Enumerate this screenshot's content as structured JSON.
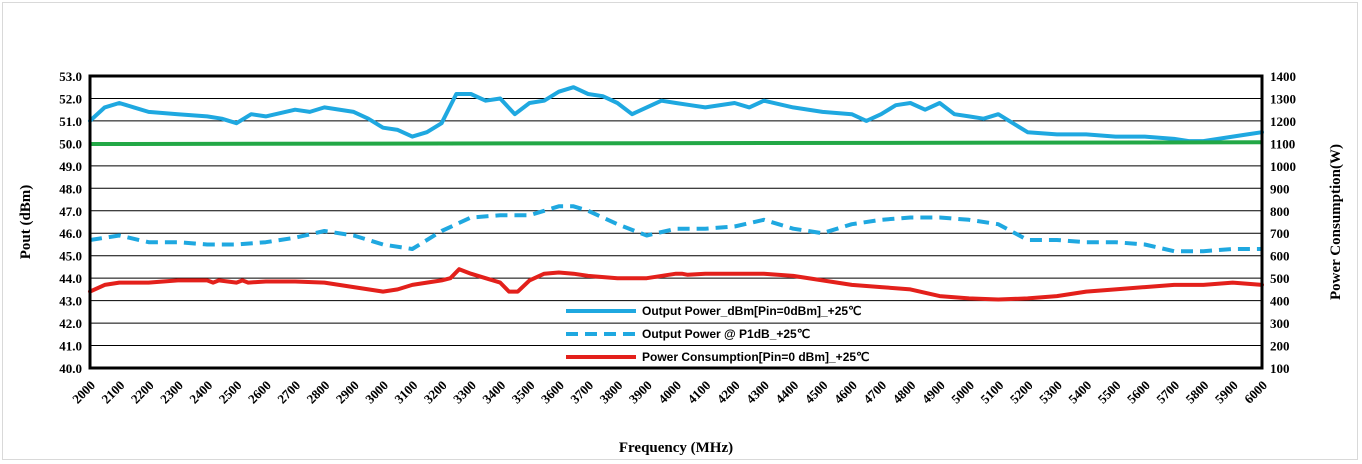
{
  "chart_data": {
    "type": "line",
    "xlabel": "Frequency (MHz)",
    "ylabel": "Pout (dBm)",
    "y2label": "Power Consumption(W)",
    "xlim": [
      2000,
      6000
    ],
    "ylim": [
      40,
      53
    ],
    "y2lim": [
      100,
      1400
    ],
    "x_ticks": [
      "2000",
      "2100",
      "2200",
      "2300",
      "2400",
      "2500",
      "2600",
      "2700",
      "2800",
      "2900",
      "3000",
      "3100",
      "3200",
      "3300",
      "3400",
      "3500",
      "3600",
      "3700",
      "3800",
      "3900",
      "4000",
      "4100",
      "4200",
      "4300",
      "4400",
      "4500",
      "4600",
      "4700",
      "4800",
      "4900",
      "5000",
      "5100",
      "5200",
      "5300",
      "5400",
      "5500",
      "5600",
      "5700",
      "5800",
      "5900",
      "6000"
    ],
    "y_ticks": [
      "40.0",
      "41.0",
      "42.0",
      "43.0",
      "44.0",
      "45.0",
      "46.0",
      "47.0",
      "48.0",
      "49.0",
      "50.0",
      "51.0",
      "52.0",
      "53.0"
    ],
    "y2_ticks": [
      "100",
      "200",
      "300",
      "400",
      "500",
      "600",
      "700",
      "800",
      "900",
      "1000",
      "1100",
      "1200",
      "1300",
      "1400"
    ],
    "grid": true,
    "legend_position": "bottom-center (inside plot)",
    "series": [
      {
        "name": "Output Power_dBm[Pin=0dBm]_+25℃",
        "axis": "left",
        "color": "#1FA8E0",
        "style": "solid",
        "x": [
          2000,
          2050,
          2100,
          2150,
          2200,
          2300,
          2400,
          2450,
          2500,
          2550,
          2600,
          2700,
          2750,
          2800,
          2900,
          2950,
          3000,
          3050,
          3100,
          3150,
          3200,
          3250,
          3300,
          3350,
          3400,
          3450,
          3500,
          3550,
          3600,
          3650,
          3700,
          3750,
          3800,
          3850,
          3900,
          3950,
          4000,
          4050,
          4100,
          4200,
          4250,
          4300,
          4400,
          4500,
          4600,
          4650,
          4700,
          4750,
          4800,
          4850,
          4900,
          4950,
          5000,
          5050,
          5100,
          5150,
          5200,
          5300,
          5400,
          5500,
          5600,
          5700,
          5750,
          5800,
          5900,
          5950,
          6000
        ],
        "values": [
          51.0,
          51.6,
          51.8,
          51.6,
          51.4,
          51.3,
          51.2,
          51.1,
          50.9,
          51.3,
          51.2,
          51.5,
          51.4,
          51.6,
          51.4,
          51.1,
          50.7,
          50.6,
          50.3,
          50.5,
          50.9,
          52.2,
          52.2,
          51.9,
          52.0,
          51.3,
          51.8,
          51.9,
          52.3,
          52.5,
          52.2,
          52.1,
          51.8,
          51.3,
          51.6,
          51.9,
          51.8,
          51.7,
          51.6,
          51.8,
          51.6,
          51.9,
          51.6,
          51.4,
          51.3,
          51.0,
          51.3,
          51.7,
          51.8,
          51.5,
          51.8,
          51.3,
          51.2,
          51.1,
          51.3,
          50.9,
          50.5,
          50.4,
          50.4,
          50.3,
          50.3,
          50.2,
          50.1,
          50.1,
          50.3,
          50.4,
          50.5
        ]
      },
      {
        "name": "Output Power @ P1dB_+25℃",
        "axis": "left",
        "color": "#1FA8E0",
        "style": "dashed",
        "x": [
          2000,
          2100,
          2200,
          2300,
          2400,
          2500,
          2600,
          2700,
          2800,
          2900,
          3000,
          3100,
          3200,
          3300,
          3400,
          3500,
          3550,
          3600,
          3650,
          3700,
          3800,
          3900,
          4000,
          4100,
          4200,
          4300,
          4400,
          4500,
          4600,
          4700,
          4800,
          4900,
          5000,
          5100,
          5200,
          5300,
          5400,
          5500,
          5600,
          5700,
          5800,
          5900,
          6000
        ],
        "values": [
          45.7,
          45.9,
          45.6,
          45.6,
          45.5,
          45.5,
          45.6,
          45.8,
          46.1,
          45.9,
          45.5,
          45.3,
          46.1,
          46.7,
          46.8,
          46.8,
          47.0,
          47.2,
          47.2,
          47.0,
          46.4,
          45.9,
          46.2,
          46.2,
          46.3,
          46.6,
          46.2,
          46.0,
          46.4,
          46.6,
          46.7,
          46.7,
          46.6,
          46.4,
          45.7,
          45.7,
          45.6,
          45.6,
          45.5,
          45.2,
          45.2,
          45.3,
          45.3
        ]
      },
      {
        "name": "Power Consumption[Pin=0 dBm]_+25℃",
        "axis": "right",
        "color": "#E3201B",
        "style": "solid",
        "x": [
          2000,
          2050,
          2100,
          2200,
          2300,
          2400,
          2420,
          2440,
          2500,
          2520,
          2540,
          2600,
          2700,
          2800,
          2900,
          3000,
          3050,
          3100,
          3150,
          3200,
          3230,
          3260,
          3300,
          3350,
          3400,
          3430,
          3460,
          3500,
          3550,
          3600,
          3650,
          3700,
          3800,
          3900,
          4000,
          4020,
          4040,
          4100,
          4200,
          4300,
          4400,
          4500,
          4600,
          4700,
          4800,
          4900,
          5000,
          5100,
          5200,
          5300,
          5400,
          5500,
          5600,
          5700,
          5800,
          5900,
          6000
        ],
        "values": [
          440,
          470,
          480,
          480,
          490,
          490,
          480,
          490,
          480,
          490,
          480,
          485,
          485,
          480,
          460,
          440,
          450,
          470,
          480,
          490,
          500,
          540,
          520,
          500,
          480,
          440,
          440,
          490,
          520,
          525,
          520,
          510,
          500,
          500,
          520,
          520,
          515,
          520,
          520,
          520,
          510,
          490,
          470,
          460,
          450,
          420,
          410,
          405,
          410,
          420,
          440,
          450,
          460,
          470,
          470,
          480,
          470
        ]
      }
    ]
  }
}
